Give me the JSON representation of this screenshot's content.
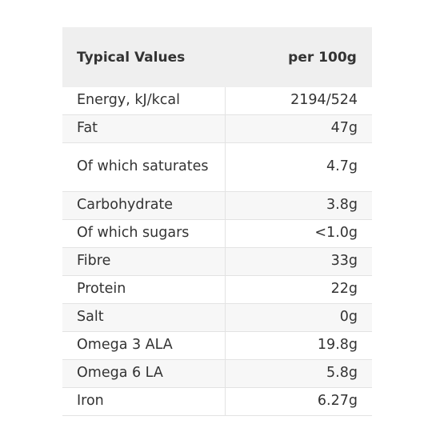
{
  "table": {
    "header": {
      "label": "Typical Values",
      "value": "per 100g"
    },
    "rows": [
      {
        "label": "Energy, kJ/kcal",
        "value": "2194/524"
      },
      {
        "label": "Fat",
        "value": "47g"
      },
      {
        "label": "Of which saturates",
        "value": "4.7g"
      },
      {
        "label": "Carbohydrate",
        "value": "3.8g"
      },
      {
        "label": "Of which sugars",
        "value": "<1.0g"
      },
      {
        "label": "Fibre",
        "value": "33g"
      },
      {
        "label": "Protein",
        "value": "22g"
      },
      {
        "label": "Salt",
        "value": "0g"
      },
      {
        "label": "Omega 3 ALA",
        "value": "19.8g"
      },
      {
        "label": "Omega 6 LA",
        "value": "5.8g"
      },
      {
        "label": "Iron",
        "value": "6.27g"
      }
    ]
  }
}
